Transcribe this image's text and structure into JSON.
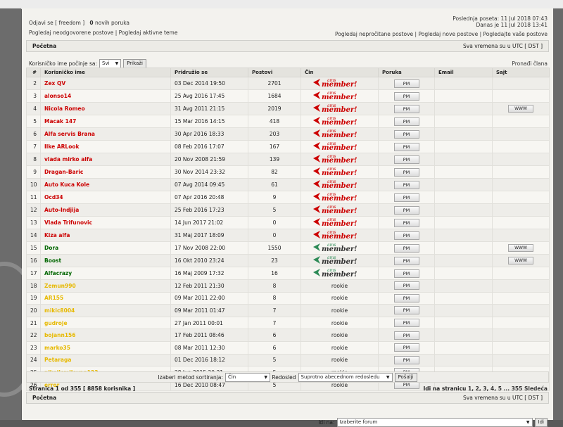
{
  "header": {
    "logout_prefix": "Odjavi se [ ",
    "username": "freedom",
    "logout_suffix": " ]",
    "new_messages_count": "0",
    "new_messages_label": "novih poruka",
    "unanswered_link": "Pogledaj neodgovorene postove",
    "active_link": "Pogledaj aktivne teme",
    "last_visit": "Poslednja poseta: 11 Jul 2018 07:43",
    "today": "Danas je 11 Jul 2018 13:41",
    "unread_link": "Pogledaj nepročitane postove",
    "new_posts_link": "Pogledaj nove postove",
    "your_posts_link": "Pogledajte vaše postove",
    "separator": "|"
  },
  "nav": {
    "home": "Početna",
    "timezone": "Sva vremena su u UTC [ DST ]"
  },
  "filter": {
    "label": "Korisničko ime počinje sa:",
    "select_value": "Svi",
    "show_button": "Prikaži",
    "find_member": "Pronađi člana"
  },
  "columns": [
    "#",
    "Korisničko ime",
    "Pridružio se",
    "Postovi",
    "Čin",
    "Poruka",
    "Email",
    "Sajt"
  ],
  "pm_label": "PM",
  "www_label": "WWW",
  "rank_badge": "member!",
  "colors": {
    "admin_red": "#cc0000",
    "moderator_green": "#006600",
    "user_yellow": "#e7b900",
    "rank_green": "#2e8b57"
  },
  "members": [
    {
      "n": "2",
      "name": "Zex QV",
      "joined": "03 Dec 2014 19:50",
      "posts": "2701",
      "rank": "ams",
      "color": "red",
      "www": false
    },
    {
      "n": "3",
      "name": "alonso14",
      "joined": "25 Avg 2016 17:45",
      "posts": "1684",
      "rank": "ams",
      "color": "red",
      "www": false
    },
    {
      "n": "4",
      "name": "Nicola Romeo",
      "joined": "31 Avg 2011 21:15",
      "posts": "2019",
      "rank": "ams",
      "color": "red",
      "www": true
    },
    {
      "n": "5",
      "name": "Macak 147",
      "joined": "15 Mar 2016 14:15",
      "posts": "418",
      "rank": "ams",
      "color": "red",
      "www": false
    },
    {
      "n": "6",
      "name": "Alfa servis Brana",
      "joined": "30 Apr 2016 18:33",
      "posts": "203",
      "rank": "ams",
      "color": "red",
      "www": false
    },
    {
      "n": "7",
      "name": "Ilke ARLook",
      "joined": "08 Feb 2016 17:07",
      "posts": "167",
      "rank": "ams",
      "color": "red",
      "www": false
    },
    {
      "n": "8",
      "name": "vlada mirko alfa",
      "joined": "20 Nov 2008 21:59",
      "posts": "139",
      "rank": "ams",
      "color": "red",
      "www": false
    },
    {
      "n": "9",
      "name": "Dragan-Baric",
      "joined": "30 Nov 2014 23:32",
      "posts": "82",
      "rank": "ams",
      "color": "red",
      "www": false
    },
    {
      "n": "10",
      "name": "Auto Kuca Kole",
      "joined": "07 Avg 2014 09:45",
      "posts": "61",
      "rank": "ams",
      "color": "red",
      "www": false
    },
    {
      "n": "11",
      "name": "Ocd34",
      "joined": "07 Apr 2016 20:48",
      "posts": "9",
      "rank": "ams",
      "color": "red",
      "www": false
    },
    {
      "n": "12",
      "name": "Auto-Indjija",
      "joined": "25 Feb 2016 17:23",
      "posts": "5",
      "rank": "ams",
      "color": "red",
      "www": false
    },
    {
      "n": "13",
      "name": "Vlada Trifunovic",
      "joined": "14 Jun 2017 21:02",
      "posts": "0",
      "rank": "ams",
      "color": "red",
      "www": false
    },
    {
      "n": "14",
      "name": "Kiza alfa",
      "joined": "31 Maj 2017 18:09",
      "posts": "0",
      "rank": "ams",
      "color": "red",
      "www": false
    },
    {
      "n": "15",
      "name": "Dora",
      "joined": "17 Nov 2008 22:00",
      "posts": "1550",
      "rank": "green",
      "color": "green",
      "www": true
    },
    {
      "n": "16",
      "name": "Boost",
      "joined": "16 Okt 2010 23:24",
      "posts": "23",
      "rank": "green",
      "color": "green",
      "www": true
    },
    {
      "n": "17",
      "name": "Alfacrazy",
      "joined": "16 Maj 2009 17:32",
      "posts": "16",
      "rank": "green",
      "color": "green",
      "www": false
    },
    {
      "n": "18",
      "name": "Zemun990",
      "joined": "12 Feb 2011 21:30",
      "posts": "8",
      "rank": "rookie",
      "color": "yellow",
      "www": false
    },
    {
      "n": "19",
      "name": "AR155",
      "joined": "09 Mar 2011 22:00",
      "posts": "8",
      "rank": "rookie",
      "color": "yellow",
      "www": false
    },
    {
      "n": "20",
      "name": "mikic8004",
      "joined": "09 Mar 2011 01:47",
      "posts": "7",
      "rank": "rookie",
      "color": "yellow",
      "www": false
    },
    {
      "n": "21",
      "name": "gudroje",
      "joined": "27 Jan 2011 00:01",
      "posts": "7",
      "rank": "rookie",
      "color": "yellow",
      "www": false
    },
    {
      "n": "22",
      "name": "bojann156",
      "joined": "17 Feb 2011 08:46",
      "posts": "6",
      "rank": "rookie",
      "color": "yellow",
      "www": false
    },
    {
      "n": "23",
      "name": "marko35",
      "joined": "08 Mar 2011 12:30",
      "posts": "6",
      "rank": "rookie",
      "color": "yellow",
      "www": false
    },
    {
      "n": "24",
      "name": "Petaraga",
      "joined": "01 Dec 2016 18:12",
      "posts": "5",
      "rank": "rookie",
      "color": "yellow",
      "www": false
    },
    {
      "n": "25",
      "name": "nikolicmilovan123",
      "joined": "28 Jun 2015 20:21",
      "posts": "5",
      "rank": "rookie",
      "color": "yellow",
      "www": false
    },
    {
      "n": "26",
      "name": "error",
      "joined": "16 Dec 2010 08:47",
      "posts": "5",
      "rank": "rookie",
      "color": "yellow",
      "www": false
    }
  ],
  "sort": {
    "method_label": "Izaberi metod sortiranja:",
    "method_value": "Čin",
    "order_label": "Redosled",
    "order_value": "Suprotno abecednom redosledu",
    "submit": "Pošalji"
  },
  "pagination": {
    "summary": "Stranica 1 od 355 [ 8858 korisnika ]",
    "goto_label": "Idi na stranicu",
    "pages": "1, 2, 3, 4, 5 ... 355",
    "next": "Sledeća"
  },
  "jump": {
    "label": "Idi na:",
    "select_value": "Izaberite forum",
    "button": "Idi"
  }
}
